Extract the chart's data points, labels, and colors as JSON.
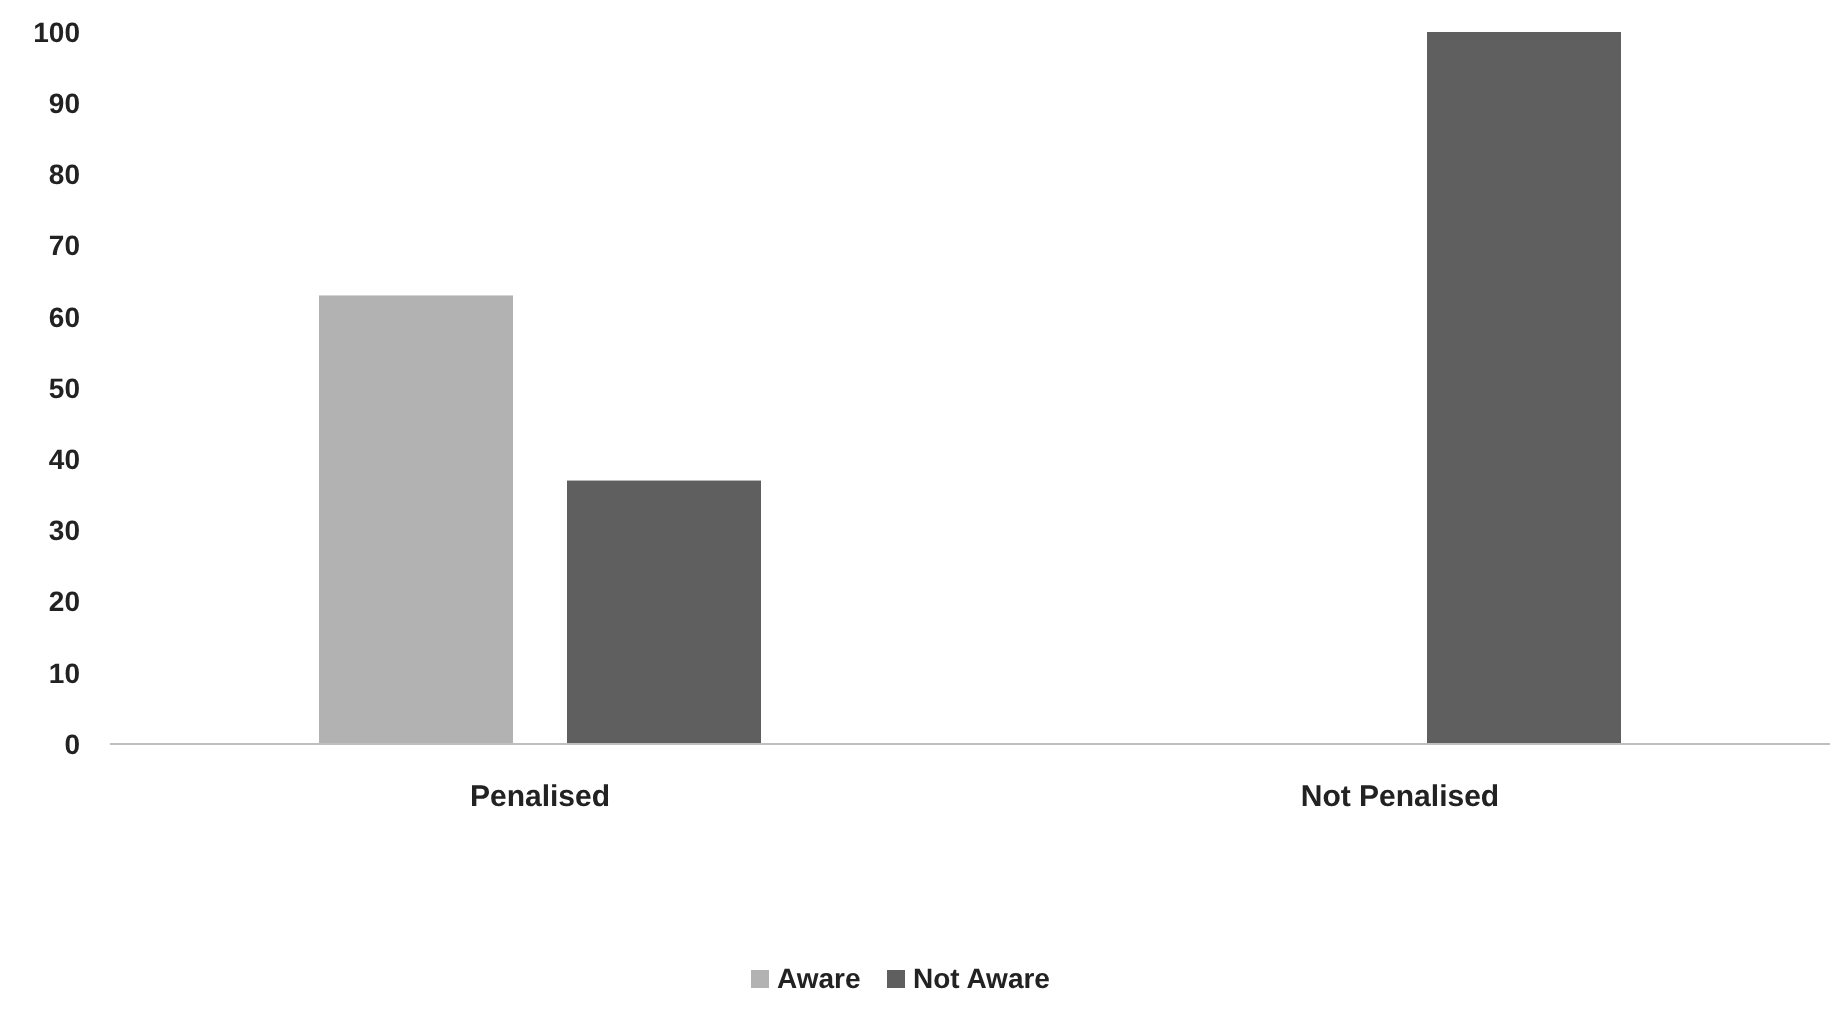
{
  "chart_data": {
    "type": "bar",
    "categories": [
      "Penalised",
      "Not Penalised"
    ],
    "series": [
      {
        "name": "Aware",
        "color": "#b2b2b2",
        "values": [
          63,
          0
        ]
      },
      {
        "name": "Not Aware",
        "color": "#5f5f5f",
        "values": [
          37,
          100
        ]
      }
    ],
    "ylim": [
      0,
      100
    ],
    "yticks": [
      0,
      10,
      20,
      30,
      40,
      50,
      60,
      70,
      80,
      90,
      100
    ],
    "grid": false,
    "legend": "bottom"
  }
}
